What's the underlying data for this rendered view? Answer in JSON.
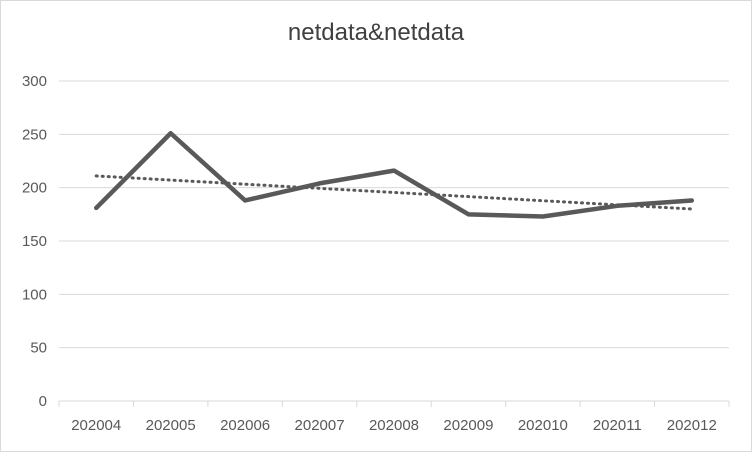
{
  "chart_data": {
    "type": "line",
    "title": "netdata&netdata",
    "categories": [
      "202004",
      "202005",
      "202006",
      "202007",
      "202008",
      "202009",
      "202010",
      "202011",
      "202012"
    ],
    "series": [
      {
        "values": [
          181,
          251,
          188,
          204,
          216,
          175,
          173,
          183,
          188
        ],
        "color": "#595959",
        "style": "solid"
      }
    ],
    "trendline": {
      "type": "linear",
      "style": "dotted",
      "color": "#595959",
      "start": 211,
      "end": 180
    },
    "ylim": [
      0,
      300
    ],
    "yticks": [
      0,
      50,
      100,
      150,
      200,
      250,
      300
    ],
    "grid": true,
    "legend": "none"
  }
}
